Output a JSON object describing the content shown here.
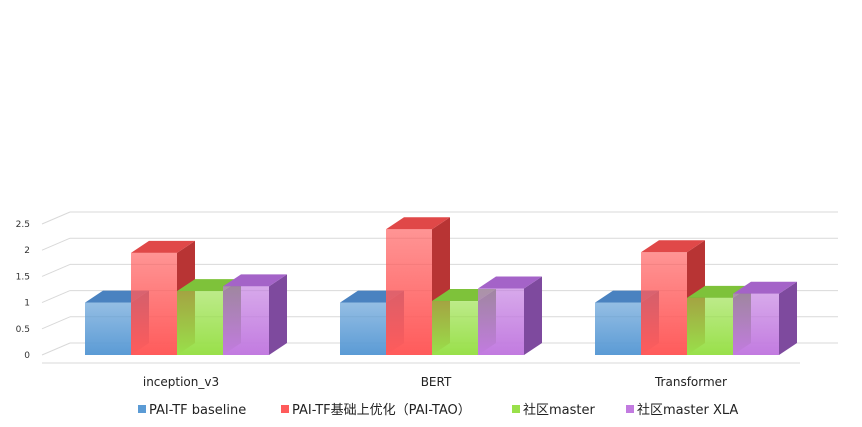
{
  "chart_data": {
    "type": "bar",
    "categories": [
      "inception_v3",
      "BERT",
      "Transformer"
    ],
    "series": [
      {
        "name": "PAI-TF baseline",
        "values": [
          1.0,
          1.0,
          1.0
        ]
      },
      {
        "name": "PAI-TF基础上优化（PAI-TAO）",
        "values": [
          1.95,
          2.4,
          1.96
        ]
      },
      {
        "name": "社区master",
        "values": [
          1.22,
          1.03,
          1.09
        ]
      },
      {
        "name": "社区master XLA",
        "values": [
          1.31,
          1.27,
          1.17
        ]
      }
    ],
    "yticks": [
      "0",
      "0.5",
      "1",
      "1.5",
      "2",
      "2.5"
    ],
    "ylim": [
      0,
      2.5
    ],
    "grid": true,
    "legend": "bottom",
    "style": "3d-column"
  },
  "colors": {
    "series": [
      "#5b9bd5",
      "#ff5b5b",
      "#99e04a",
      "#c27be0"
    ],
    "tops": [
      "#4a82c0",
      "#e04848",
      "#7ec23a",
      "#a463c8"
    ],
    "sides": [
      "#3f6fa8",
      "#b83434",
      "#5f9c2a",
      "#7e4a9e"
    ],
    "grid": "#d9d9d9"
  }
}
